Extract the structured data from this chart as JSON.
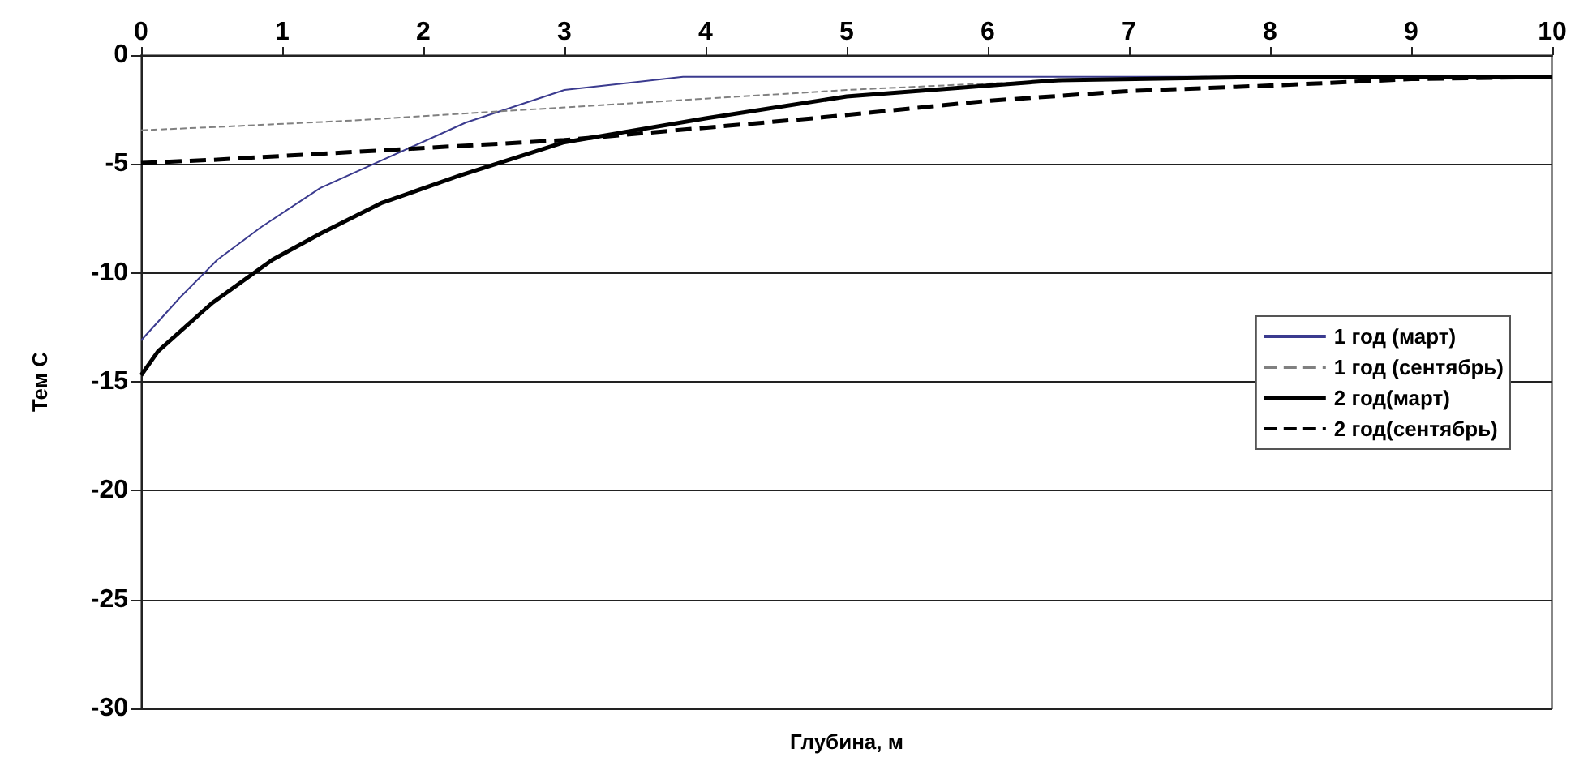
{
  "chart_data": {
    "type": "line",
    "xlabel": "Глубина, м",
    "ylabel": "Тем С",
    "xlim": [
      0,
      10
    ],
    "ylim": [
      -30,
      0
    ],
    "xticks": [
      0,
      1,
      2,
      3,
      4,
      5,
      6,
      7,
      8,
      9,
      10
    ],
    "yticks": [
      -30,
      -25,
      -20,
      -15,
      -10,
      -5,
      0
    ],
    "grid": "y",
    "legend": "right",
    "marker": "none",
    "series": [
      {
        "name": "1 год (март)",
        "color": "#3b3b8f",
        "line_style": "solid",
        "x": [
          0,
          0.28,
          0.54,
          0.85,
          1.27,
          2.3,
          3.0,
          3.84,
          6,
          8,
          10
        ],
        "values": [
          -13.1,
          -11.1,
          -9.4,
          -7.9,
          -6.1,
          -3.1,
          -1.6,
          -1.0,
          -1.0,
          -1.0,
          -1.0
        ]
      },
      {
        "name": "1 год (сентябрь)",
        "color": "#808080",
        "line_style": "dashed",
        "x": [
          0,
          0.54,
          1.5,
          3,
          4,
          5,
          6,
          7.5,
          10
        ],
        "values": [
          -3.45,
          -3.3,
          -3.0,
          -2.4,
          -2.0,
          -1.6,
          -1.3,
          -1.0,
          -1.0
        ]
      },
      {
        "name": "2 год(март)",
        "color": "#000000",
        "line_style": "solid",
        "x": [
          0,
          0.12,
          0.5,
          0.93,
          1.27,
          1.7,
          2.27,
          3,
          4,
          5,
          6.5,
          8,
          10
        ],
        "values": [
          -14.7,
          -13.6,
          -11.4,
          -9.4,
          -8.2,
          -6.8,
          -5.5,
          -4.0,
          -2.9,
          -1.9,
          -1.15,
          -1.0,
          -1.0
        ]
      },
      {
        "name": "2 год(сентябрь)",
        "color": "#000000",
        "line_style": "dashed",
        "x": [
          0,
          0.54,
          3,
          4.76,
          6,
          7,
          8,
          9,
          10
        ],
        "values": [
          -4.95,
          -4.8,
          -3.9,
          -2.9,
          -2.1,
          -1.65,
          -1.4,
          -1.1,
          -1.0
        ]
      }
    ]
  }
}
